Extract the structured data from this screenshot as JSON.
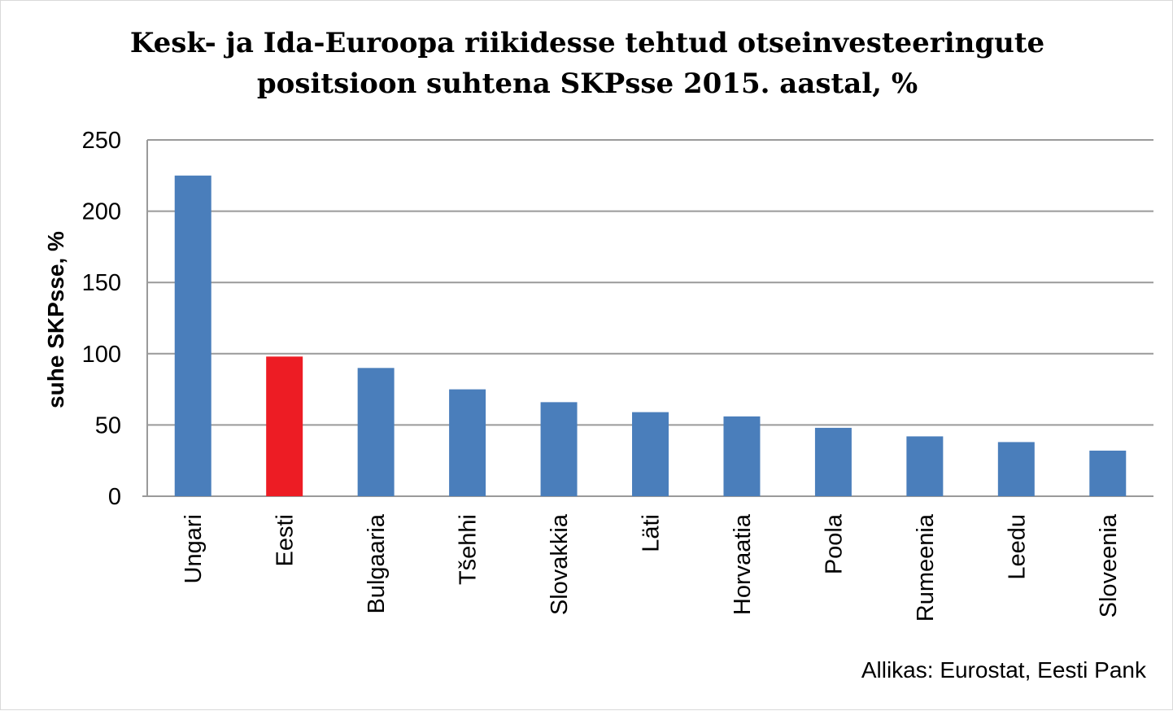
{
  "chart_data": {
    "type": "bar",
    "title_lines": [
      "Kesk- ja Ida-Euroopa riikidesse tehtud otseinvesteeringute",
      "positsioon suhtena SKPsse 2015. aastal, %"
    ],
    "ylabel": "suhe SKPsse, %",
    "xlabel": "",
    "categories": [
      "Ungari",
      "Eesti",
      "Bulgaaria",
      "Tšehhi",
      "Slovakkia",
      "Läti",
      "Horvaatia",
      "Poola",
      "Rumeenia",
      "Leedu",
      "Sloveenia"
    ],
    "values": [
      225,
      98,
      90,
      75,
      66,
      59,
      56,
      48,
      42,
      38,
      32
    ],
    "ylim": [
      0,
      250
    ],
    "yticks": [
      0,
      50,
      100,
      150,
      200,
      250
    ],
    "grid": true,
    "colors": {
      "default": "#4a7ebb",
      "highlight": "#ed1c24",
      "grid": "#9a9a9a"
    },
    "highlight_category": "Eesti",
    "source": "Allikas: Eurostat, Eesti Pank"
  }
}
